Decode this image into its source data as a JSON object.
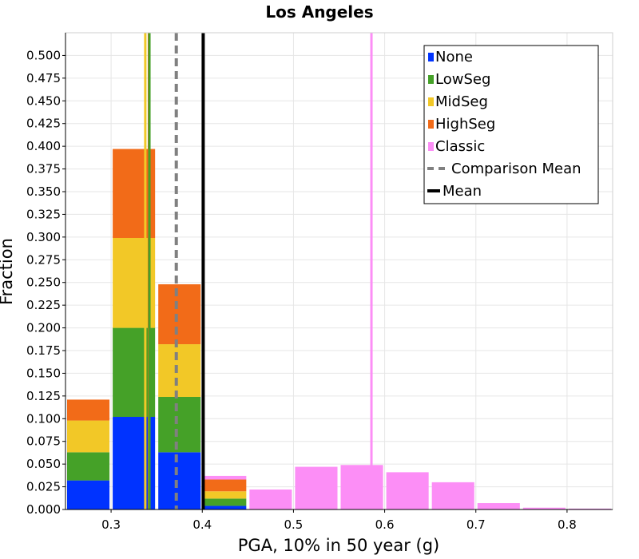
{
  "chart_data": {
    "type": "bar",
    "title": "Los Angeles",
    "xlabel": "PGA, 10% in 50 year (g)",
    "ylabel": "Fraction",
    "xlim": [
      0.25,
      0.85
    ],
    "ylim": [
      0,
      0.525
    ],
    "xticks": [
      "0.3",
      "0.4",
      "0.5",
      "0.6",
      "0.7",
      "0.8"
    ],
    "yticks": [
      "0.000",
      "0.025",
      "0.050",
      "0.075",
      "0.100",
      "0.125",
      "0.150",
      "0.175",
      "0.200",
      "0.225",
      "0.250",
      "0.275",
      "0.300",
      "0.325",
      "0.350",
      "0.375",
      "0.400",
      "0.425",
      "0.450",
      "0.475",
      "0.500"
    ],
    "grid": true,
    "legend_position": "top-right",
    "bin_width": 0.05,
    "bin_centers": [
      0.275,
      0.325,
      0.375,
      0.425,
      0.475,
      0.525,
      0.575,
      0.625,
      0.675,
      0.725,
      0.775,
      0.825
    ],
    "series": [
      {
        "name": "None",
        "color": "#0033ff",
        "values": [
          0.032,
          0.102,
          0.063,
          0.004,
          0,
          0,
          0,
          0,
          0,
          0,
          0,
          0
        ]
      },
      {
        "name": "LowSeg",
        "color": "#45a128",
        "values": [
          0.031,
          0.098,
          0.061,
          0.008,
          0,
          0,
          0,
          0,
          0,
          0,
          0,
          0
        ]
      },
      {
        "name": "MidSeg",
        "color": "#f2c827",
        "values": [
          0.035,
          0.099,
          0.058,
          0.008,
          0,
          0,
          0,
          0,
          0,
          0,
          0,
          0
        ]
      },
      {
        "name": "HighSeg",
        "color": "#f26b18",
        "values": [
          0.023,
          0.098,
          0.066,
          0.013,
          0,
          0,
          0,
          0,
          0,
          0,
          0,
          0
        ]
      },
      {
        "name": "Classic",
        "color": "#fc8ef6",
        "values": [
          0,
          0,
          0,
          0.004,
          0.022,
          0.047,
          0.049,
          0.041,
          0.03,
          0.007,
          0.002,
          0.001
        ]
      }
    ],
    "vertical_lines": [
      {
        "legend": "",
        "x": 0.3375,
        "color": "#f2c827",
        "style": "solid"
      },
      {
        "legend": "",
        "x": 0.3415,
        "color": "#f26b18",
        "style": "solid"
      },
      {
        "legend": "",
        "x": 0.342,
        "color": "#45a128",
        "style": "solid"
      },
      {
        "legend": "Comparison Mean",
        "x": 0.3715,
        "color": "#808080",
        "style": "dashed"
      },
      {
        "legend": "Mean",
        "x": 0.401,
        "color": "#000000",
        "style": "solid"
      },
      {
        "legend": "",
        "x": 0.5855,
        "color": "#fc8ef6",
        "style": "solid"
      }
    ],
    "legend": [
      "None",
      "LowSeg",
      "MidSeg",
      "HighSeg",
      "Classic",
      "Comparison Mean",
      "Mean"
    ]
  }
}
